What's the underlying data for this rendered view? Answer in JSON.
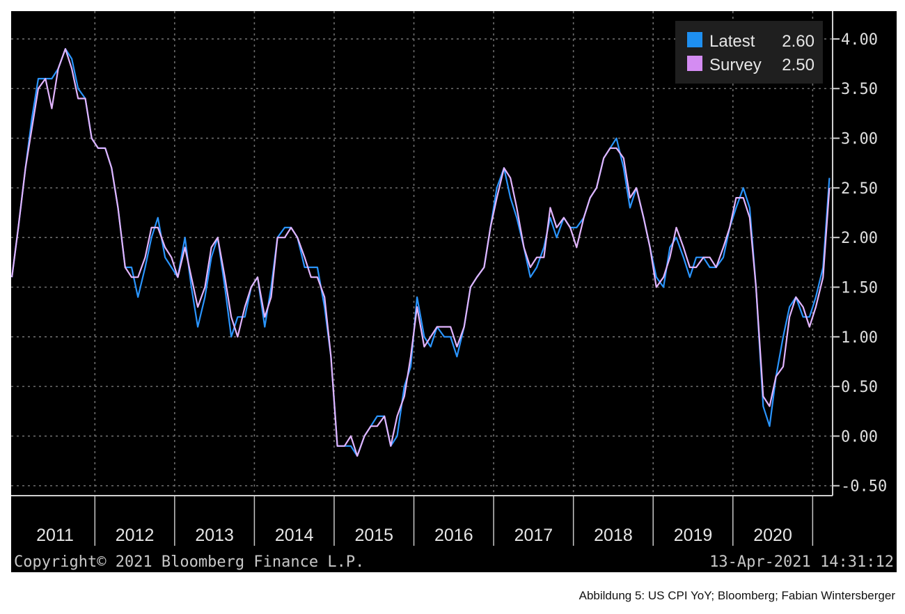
{
  "chart_data": {
    "type": "line",
    "x_unit": "year",
    "x_range": [
      2010.95,
      2021.25
    ],
    "ylim": [
      -0.6,
      4.28
    ],
    "y_ticks": [
      "4.00",
      "3.50",
      "3.00",
      "2.50",
      "2.00",
      "1.50",
      "1.00",
      "0.50",
      "0.00",
      "-0.50"
    ],
    "year_labels": [
      "2011",
      "2012",
      "2013",
      "2014",
      "2015",
      "2016",
      "2017",
      "2018",
      "2019",
      "2020"
    ],
    "grid": true,
    "legend_position": "top-right",
    "legend": [
      {
        "label": "Latest",
        "value": "2.60",
        "color": "#1e8ff0"
      },
      {
        "label": "Survey",
        "value": "2.50",
        "color": "#d48cf2"
      }
    ],
    "series": [
      {
        "name": "Latest",
        "color": "#2a95ff",
        "x": [
          2010.96,
          2011.04,
          2011.13,
          2011.21,
          2011.29,
          2011.38,
          2011.46,
          2011.54,
          2011.63,
          2011.71,
          2011.79,
          2011.88,
          2011.96,
          2012.04,
          2012.13,
          2012.21,
          2012.29,
          2012.38,
          2012.46,
          2012.54,
          2012.63,
          2012.71,
          2012.79,
          2012.88,
          2012.96,
          2013.04,
          2013.13,
          2013.21,
          2013.29,
          2013.38,
          2013.46,
          2013.54,
          2013.63,
          2013.71,
          2013.79,
          2013.88,
          2013.96,
          2014.04,
          2014.13,
          2014.21,
          2014.29,
          2014.38,
          2014.46,
          2014.54,
          2014.63,
          2014.71,
          2014.79,
          2014.88,
          2014.96,
          2015.04,
          2015.13,
          2015.21,
          2015.29,
          2015.38,
          2015.46,
          2015.54,
          2015.63,
          2015.71,
          2015.79,
          2015.88,
          2015.96,
          2016.04,
          2016.13,
          2016.21,
          2016.29,
          2016.38,
          2016.46,
          2016.54,
          2016.63,
          2016.71,
          2016.79,
          2016.88,
          2016.96,
          2017.04,
          2017.13,
          2017.21,
          2017.29,
          2017.38,
          2017.46,
          2017.54,
          2017.63,
          2017.71,
          2017.79,
          2017.88,
          2017.96,
          2018.04,
          2018.13,
          2018.21,
          2018.29,
          2018.38,
          2018.46,
          2018.54,
          2018.63,
          2018.71,
          2018.79,
          2018.88,
          2018.96,
          2019.04,
          2019.13,
          2019.21,
          2019.29,
          2019.38,
          2019.46,
          2019.54,
          2019.63,
          2019.71,
          2019.79,
          2019.88,
          2019.96,
          2020.04,
          2020.13,
          2020.21,
          2020.29,
          2020.38,
          2020.46,
          2020.54,
          2020.63,
          2020.71,
          2020.79,
          2020.88,
          2020.96,
          2021.04,
          2021.13,
          2021.21
        ],
        "values": [
          1.6,
          2.1,
          2.7,
          3.2,
          3.6,
          3.6,
          3.6,
          3.7,
          3.9,
          3.8,
          3.5,
          3.4,
          3.0,
          2.9,
          2.9,
          2.7,
          2.3,
          1.7,
          1.7,
          1.4,
          1.7,
          2.0,
          2.2,
          1.8,
          1.7,
          1.6,
          2.0,
          1.5,
          1.1,
          1.4,
          1.8,
          2.0,
          1.5,
          1.0,
          1.2,
          1.2,
          1.5,
          1.6,
          1.1,
          1.5,
          2.0,
          2.1,
          2.1,
          2.0,
          1.7,
          1.7,
          1.7,
          1.3,
          0.8,
          -0.1,
          -0.1,
          -0.1,
          -0.2,
          0.0,
          0.1,
          0.2,
          0.2,
          -0.1,
          0.0,
          0.5,
          0.7,
          1.4,
          1.0,
          0.9,
          1.1,
          1.0,
          1.0,
          0.8,
          1.1,
          1.5,
          1.6,
          1.7,
          2.1,
          2.5,
          2.7,
          2.4,
          2.2,
          1.9,
          1.6,
          1.7,
          1.9,
          2.2,
          2.0,
          2.2,
          2.1,
          2.1,
          2.2,
          2.4,
          2.5,
          2.8,
          2.9,
          3.0,
          2.7,
          2.3,
          2.5,
          2.2,
          1.9,
          1.6,
          1.5,
          1.9,
          2.0,
          1.8,
          1.6,
          1.8,
          1.8,
          1.7,
          1.7,
          1.8,
          2.1,
          2.3,
          2.5,
          2.3,
          1.5,
          0.3,
          0.1,
          0.6,
          1.0,
          1.3,
          1.4,
          1.2,
          1.2,
          1.4,
          1.7,
          2.6
        ]
      },
      {
        "name": "Survey",
        "color": "#e2b5ff",
        "x": [
          2010.96,
          2011.04,
          2011.13,
          2011.21,
          2011.29,
          2011.38,
          2011.46,
          2011.54,
          2011.63,
          2011.71,
          2011.79,
          2011.88,
          2011.96,
          2012.04,
          2012.13,
          2012.21,
          2012.29,
          2012.38,
          2012.46,
          2012.54,
          2012.63,
          2012.71,
          2012.79,
          2012.88,
          2012.96,
          2013.04,
          2013.13,
          2013.21,
          2013.29,
          2013.38,
          2013.46,
          2013.54,
          2013.63,
          2013.71,
          2013.79,
          2013.88,
          2013.96,
          2014.04,
          2014.13,
          2014.21,
          2014.29,
          2014.38,
          2014.46,
          2014.54,
          2014.63,
          2014.71,
          2014.79,
          2014.88,
          2014.96,
          2015.04,
          2015.13,
          2015.21,
          2015.29,
          2015.38,
          2015.46,
          2015.54,
          2015.63,
          2015.71,
          2015.79,
          2015.88,
          2015.96,
          2016.04,
          2016.13,
          2016.21,
          2016.29,
          2016.38,
          2016.46,
          2016.54,
          2016.63,
          2016.71,
          2016.79,
          2016.88,
          2016.96,
          2017.04,
          2017.13,
          2017.21,
          2017.29,
          2017.38,
          2017.46,
          2017.54,
          2017.63,
          2017.71,
          2017.79,
          2017.88,
          2017.96,
          2018.04,
          2018.13,
          2018.21,
          2018.29,
          2018.38,
          2018.46,
          2018.54,
          2018.63,
          2018.71,
          2018.79,
          2018.88,
          2018.96,
          2019.04,
          2019.13,
          2019.21,
          2019.29,
          2019.38,
          2019.46,
          2019.54,
          2019.63,
          2019.71,
          2019.79,
          2019.88,
          2019.96,
          2020.04,
          2020.13,
          2020.21,
          2020.29,
          2020.38,
          2020.46,
          2020.54,
          2020.63,
          2020.71,
          2020.79,
          2020.88,
          2020.96,
          2021.04,
          2021.13,
          2021.21
        ],
        "values": [
          1.6,
          2.1,
          2.7,
          3.1,
          3.5,
          3.6,
          3.3,
          3.7,
          3.9,
          3.7,
          3.4,
          3.4,
          3.0,
          2.9,
          2.9,
          2.7,
          2.3,
          1.7,
          1.6,
          1.6,
          1.8,
          2.1,
          2.1,
          1.9,
          1.8,
          1.6,
          1.9,
          1.6,
          1.3,
          1.5,
          1.9,
          2.0,
          1.6,
          1.2,
          1.0,
          1.3,
          1.5,
          1.6,
          1.2,
          1.4,
          2.0,
          2.0,
          2.1,
          2.0,
          1.8,
          1.6,
          1.6,
          1.4,
          0.8,
          -0.1,
          -0.1,
          0.0,
          -0.2,
          0.0,
          0.1,
          0.1,
          0.2,
          -0.1,
          0.2,
          0.4,
          0.8,
          1.3,
          0.9,
          1.0,
          1.1,
          1.1,
          1.1,
          0.9,
          1.1,
          1.5,
          1.6,
          1.7,
          2.1,
          2.4,
          2.7,
          2.6,
          2.3,
          1.9,
          1.7,
          1.8,
          1.8,
          2.3,
          2.1,
          2.2,
          2.1,
          1.9,
          2.2,
          2.4,
          2.5,
          2.8,
          2.9,
          2.9,
          2.8,
          2.4,
          2.5,
          2.2,
          1.9,
          1.5,
          1.6,
          1.8,
          2.1,
          1.9,
          1.7,
          1.7,
          1.8,
          1.8,
          1.7,
          1.9,
          2.1,
          2.4,
          2.4,
          2.2,
          1.5,
          0.4,
          0.3,
          0.6,
          0.7,
          1.2,
          1.4,
          1.3,
          1.1,
          1.3,
          1.6,
          2.5
        ]
      }
    ]
  },
  "footer": {
    "copyright": "Copyright© 2021 Bloomberg Finance L.P.",
    "timestamp": "13-Apr-2021 14:31:12"
  },
  "caption": "Abbildung 5: US CPI YoY; Bloomberg; Fabian Wintersberger"
}
